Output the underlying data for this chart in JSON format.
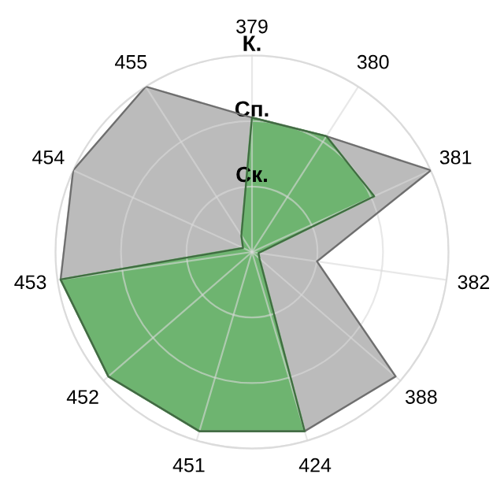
{
  "chart_data": {
    "type": "radar",
    "categories": [
      "379",
      "380",
      "381",
      "382",
      "388",
      "424",
      "451",
      "452",
      "453",
      "454",
      "455"
    ],
    "ylim": [
      0,
      3
    ],
    "yticks": [
      {
        "value": 1,
        "label": "Ск."
      },
      {
        "value": 2,
        "label": "Сп."
      },
      {
        "value": 3,
        "label": "К."
      }
    ],
    "grid": true,
    "legend": false,
    "series": [
      {
        "color": "#b8b8b8",
        "values": [
          2.05,
          2.1,
          3.0,
          1.0,
          2.9,
          2.85,
          2.85,
          2.9,
          2.95,
          3.0,
          3.0
        ]
      },
      {
        "color": "#6ab46c",
        "values": [
          2.05,
          2.1,
          2.05,
          0.1,
          0.15,
          2.85,
          2.85,
          2.9,
          2.95,
          0.15,
          0.3
        ]
      }
    ]
  }
}
